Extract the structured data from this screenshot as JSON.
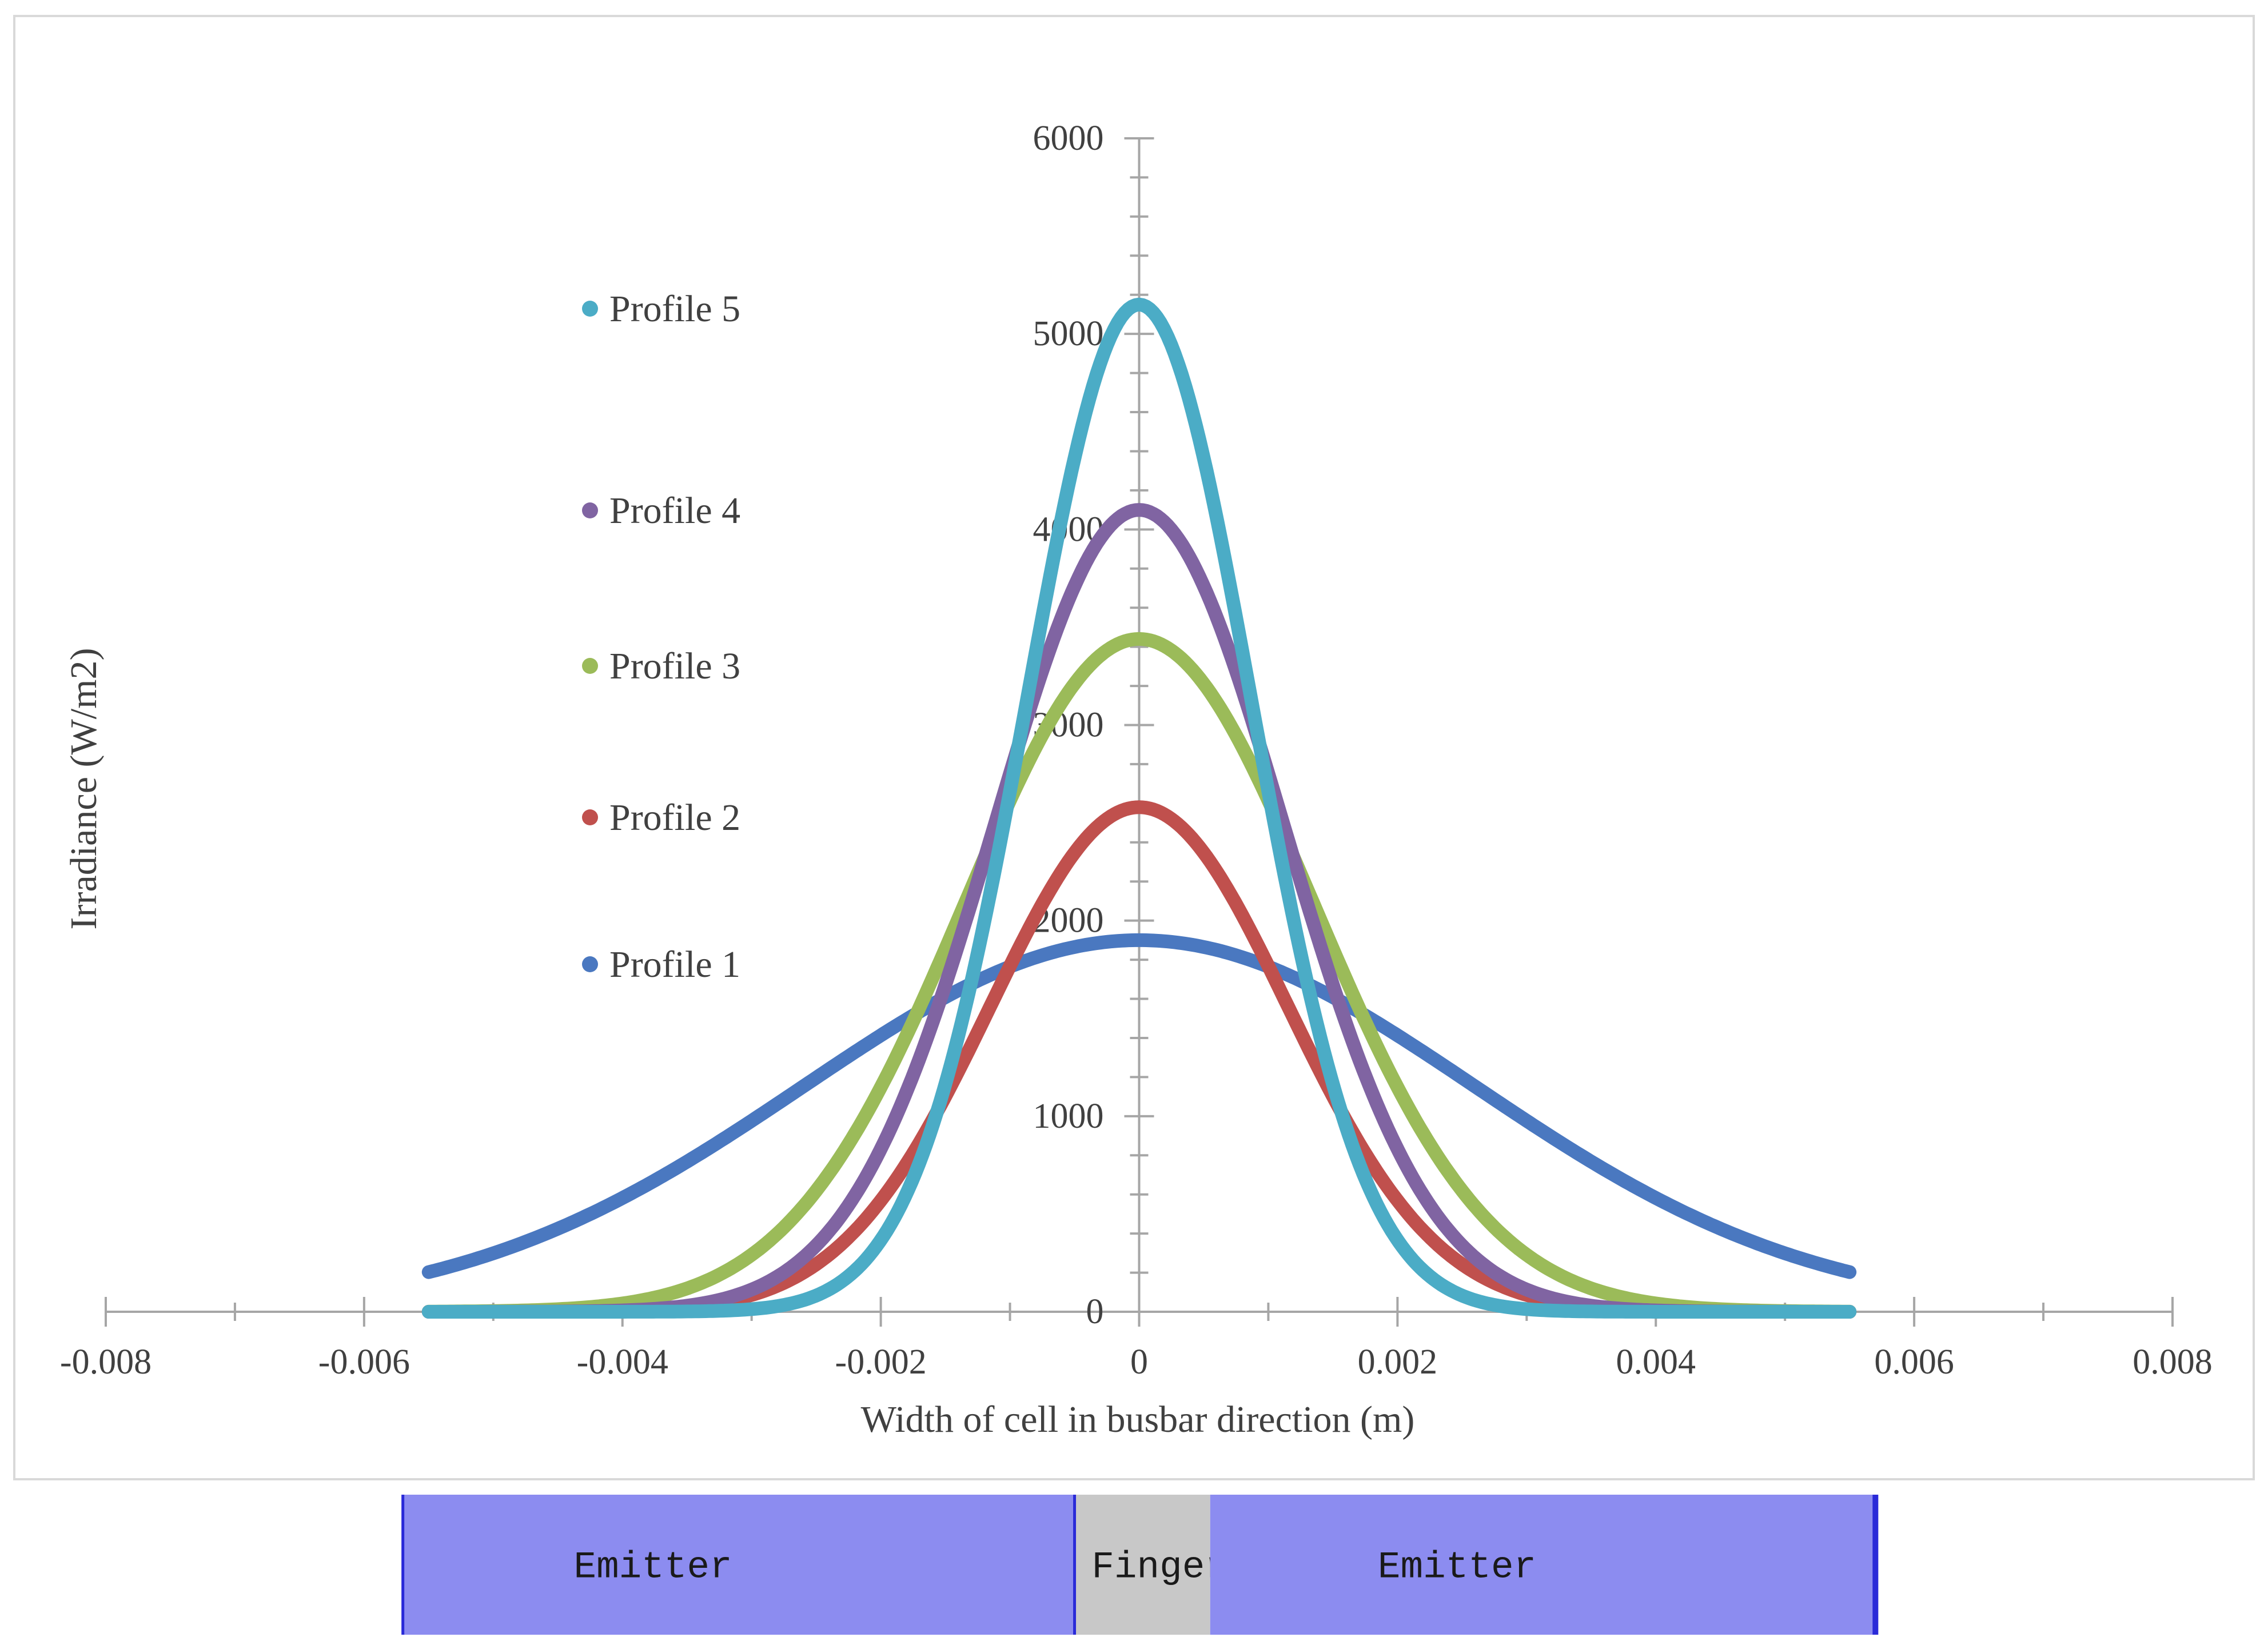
{
  "chart_data": {
    "type": "line",
    "xlabel": "Width of cell in busbar direction (m)",
    "ylabel": "Irradiance (W/m2)",
    "xlim": [
      -0.008,
      0.008
    ],
    "ylim": [
      0,
      6000
    ],
    "x_ticks": [
      "-0.008",
      "-0.006",
      "-0.004",
      "-0.002",
      "0",
      "0.002",
      "0.004",
      "0.006",
      "0.008"
    ],
    "y_ticks": [
      "0",
      "1000",
      "2000",
      "3000",
      "4000",
      "5000",
      "6000"
    ],
    "x_domain": [
      -0.0055,
      0.0055
    ],
    "grid": false,
    "legend_placement": "left, stacked inside plot",
    "series": [
      {
        "name": "Profile 1",
        "peak": 1900,
        "sigma": 0.0026,
        "color": "#4a78c0"
      },
      {
        "name": "Profile 2",
        "peak": 2580,
        "sigma": 0.00115,
        "color": "#c0504d"
      },
      {
        "name": "Profile 3",
        "peak": 3440,
        "sigma": 0.00135,
        "color": "#9bbb59"
      },
      {
        "name": "Profile 4",
        "peak": 4100,
        "sigma": 0.00112,
        "color": "#8064a2"
      },
      {
        "name": "Profile 5",
        "peak": 5150,
        "sigma": 0.00087,
        "color": "#4bacc6"
      }
    ],
    "legend_order": [
      "Profile 5",
      "Profile 4",
      "Profile 3",
      "Profile 2",
      "Profile 1"
    ]
  },
  "strip": {
    "segments": [
      {
        "label": "Emitter",
        "x_start": -0.0057,
        "x_end": -0.0005,
        "color": "#8c8cf0"
      },
      {
        "label": "Finger",
        "x_start": -0.0005,
        "x_end": 0.00055,
        "color": "#c8c8c8"
      },
      {
        "label": "Emitter",
        "x_start": 0.00055,
        "x_end": 0.0057,
        "color": "#8c8cf0"
      }
    ],
    "border_color": "#2a2ad8"
  }
}
